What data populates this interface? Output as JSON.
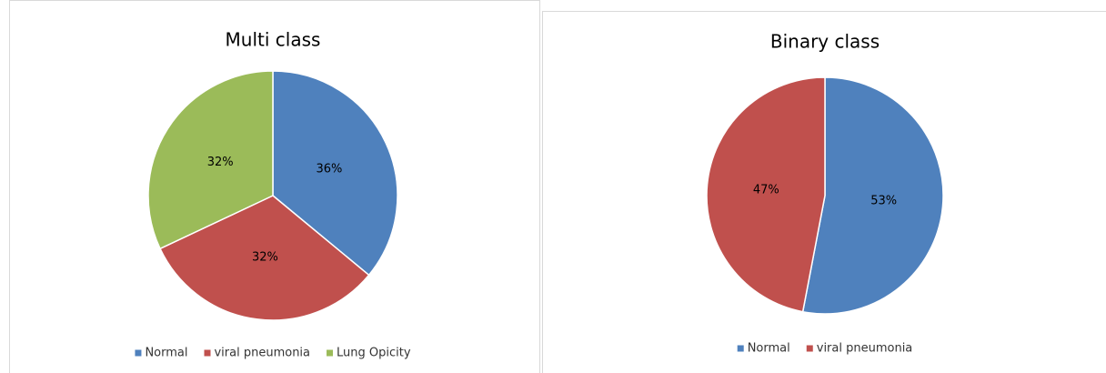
{
  "chart_data": [
    {
      "type": "pie",
      "title": "Multi class",
      "categories": [
        "Normal",
        "viral pneumonia",
        "Lung Opicity"
      ],
      "values": [
        36,
        32,
        32
      ],
      "value_labels": [
        "36%",
        "32%",
        "32%"
      ],
      "colors": [
        "#4f81bd",
        "#c0504d",
        "#9bbb59"
      ],
      "legend": "bottom"
    },
    {
      "type": "pie",
      "title": "Binary class",
      "categories": [
        "Normal",
        "viral pneumonia"
      ],
      "values": [
        53,
        47
      ],
      "value_labels": [
        "53%",
        "47%"
      ],
      "colors": [
        "#4f81bd",
        "#c0504d"
      ],
      "legend": "bottom"
    }
  ]
}
